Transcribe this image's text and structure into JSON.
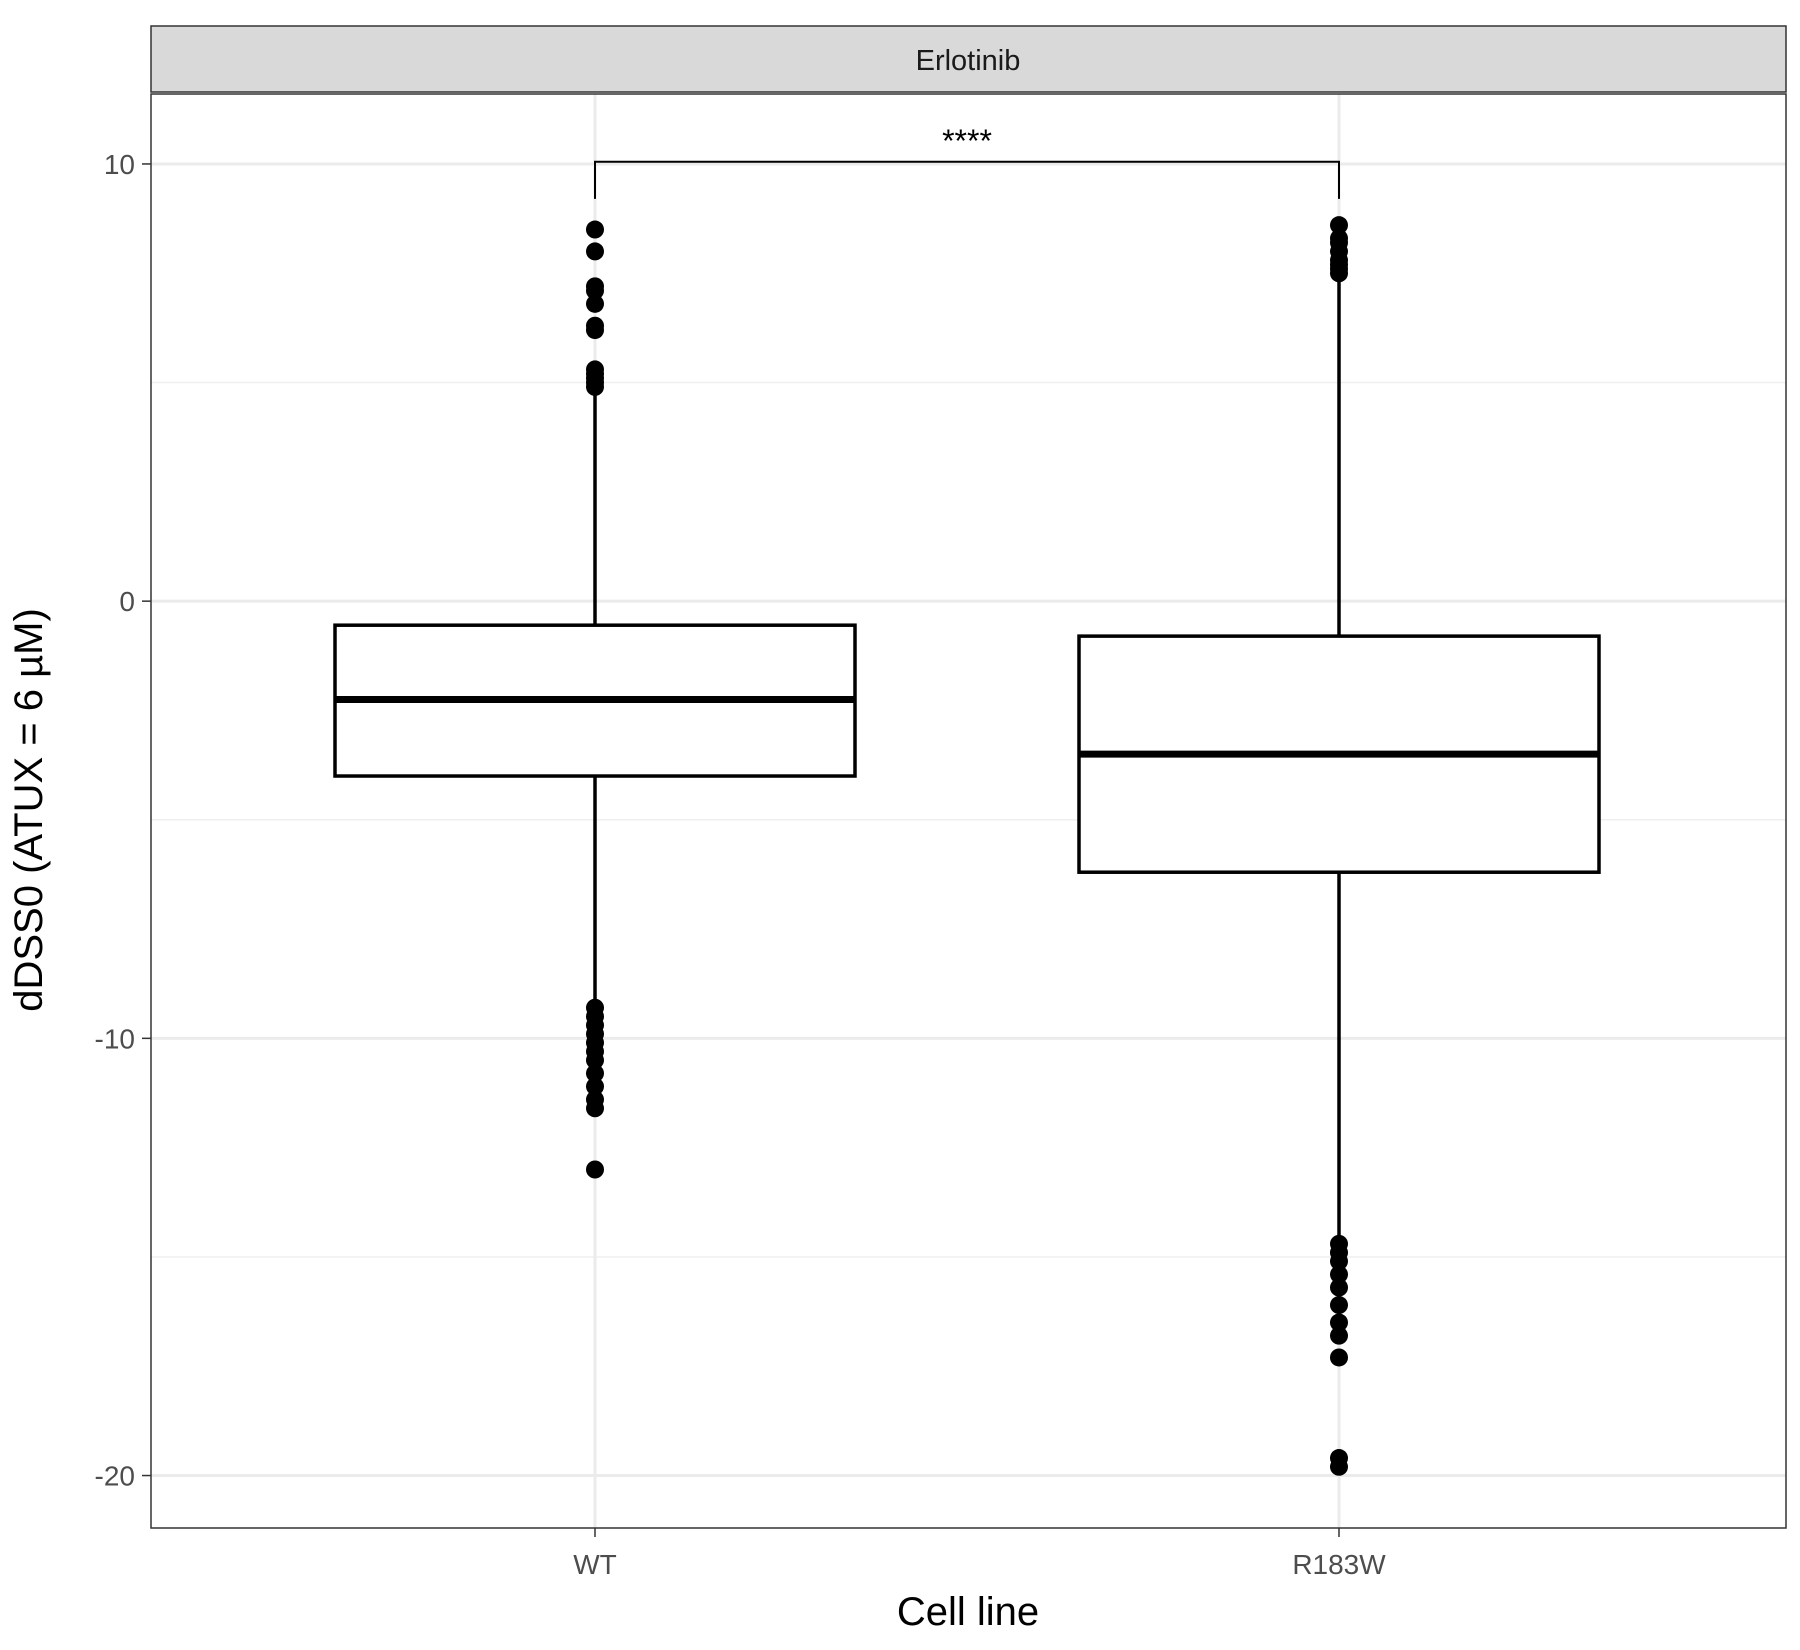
{
  "chart_data": {
    "type": "box",
    "facet_label": "Erlotinib",
    "xlabel": "Cell line",
    "ylabel": "dDSS0 (ATUX = 6 µM)",
    "ylim": [
      -21.2,
      11.6
    ],
    "y_ticks": [
      -20,
      -10,
      0,
      10
    ],
    "y_tick_labels": [
      "-20",
      "-10",
      "0",
      "10"
    ],
    "y_minor_ticks": [
      -15,
      -5,
      5
    ],
    "grid": true,
    "categories": [
      "WT",
      "R183W"
    ],
    "boxes": [
      {
        "name": "WT",
        "q1": -4.0,
        "median": -2.25,
        "q3": -0.55,
        "whisker_low": -9.2,
        "whisker_high": 4.8,
        "outliers": [
          8.5,
          8.0,
          7.2,
          7.1,
          6.8,
          6.3,
          6.2,
          5.3,
          5.2,
          5.1,
          5.0,
          4.9,
          -9.3,
          -9.5,
          -9.7,
          -9.9,
          -10.1,
          -10.3,
          -10.5,
          -10.8,
          -11.1,
          -11.4,
          -11.6,
          -13.0
        ]
      },
      {
        "name": "R183W",
        "q1": -6.2,
        "median": -3.5,
        "q3": -0.8,
        "whisker_low": -14.6,
        "whisker_high": 7.4,
        "outliers": [
          8.6,
          8.3,
          8.2,
          8.0,
          7.8,
          7.7,
          7.6,
          7.5,
          -14.7,
          -14.9,
          -15.1,
          -15.4,
          -15.7,
          -16.1,
          -16.5,
          -16.8,
          -17.3,
          -19.6,
          -19.8
        ]
      }
    ],
    "significance": {
      "label": "****",
      "from": "WT",
      "to": "R183W",
      "y": 10.05,
      "tick_bottom": 9.2
    }
  }
}
